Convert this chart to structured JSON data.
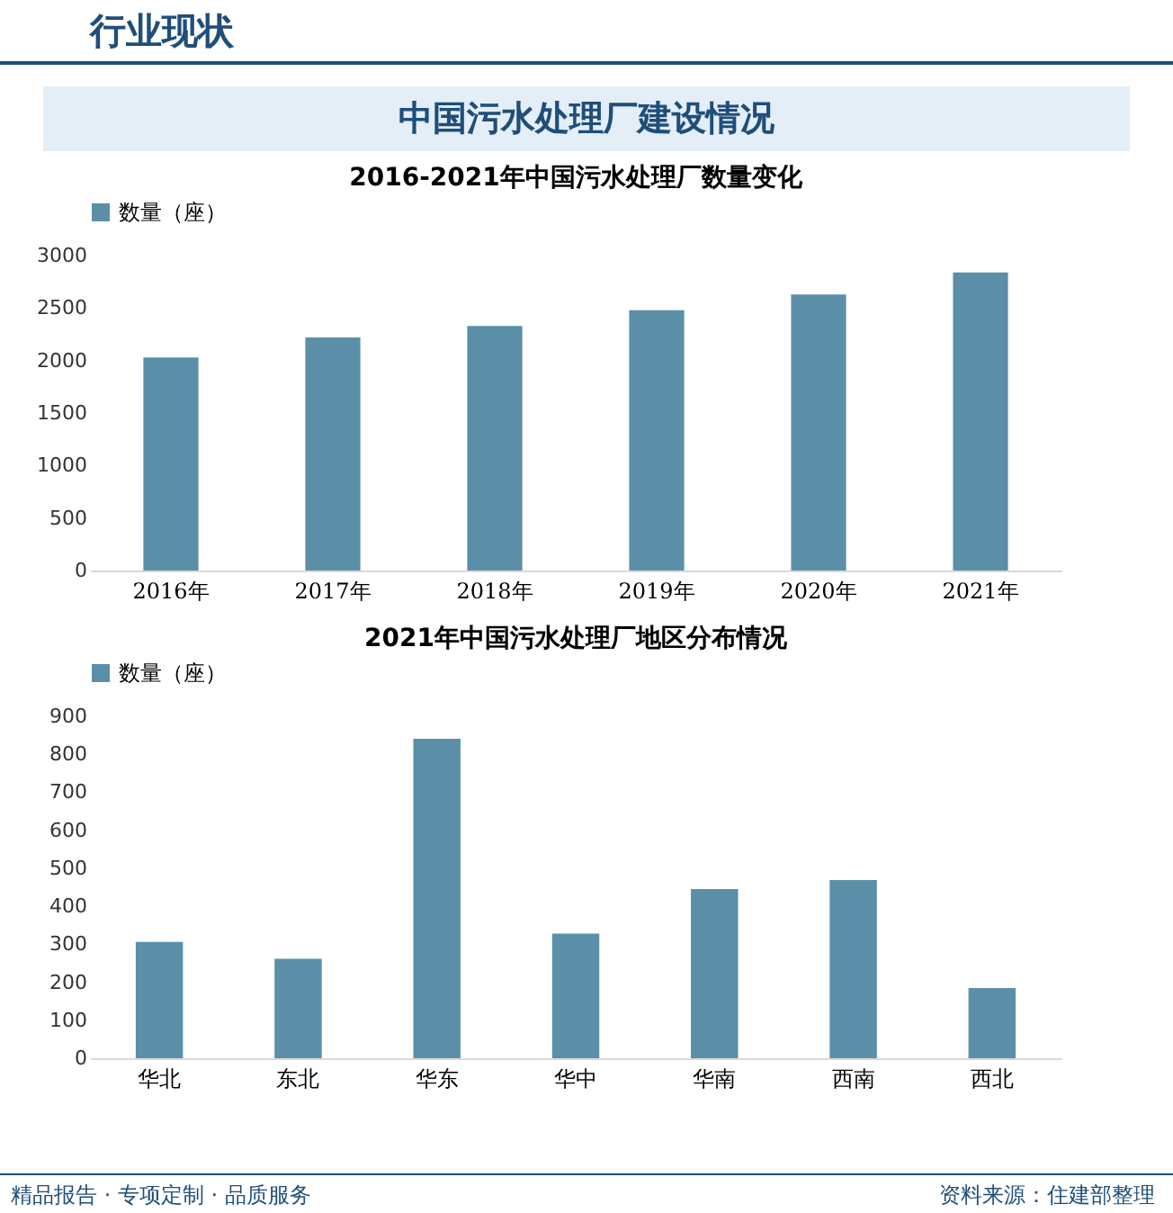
{
  "chart_data": [
    {
      "type": "bar",
      "title": "2016-2021年中国污水处理厂数量变化",
      "annotations": [
        "行业现状",
        "中国污水处理厂建设情况"
      ],
      "categories": [
        "2016年",
        "2017年",
        "2018年",
        "2019年",
        "2020年",
        "2021年"
      ],
      "series": [
        {
          "name": "数量（座）",
          "color": "#5b8fa8",
          "values": [
            2030,
            2220,
            2330,
            2480,
            2630,
            2840
          ]
        }
      ],
      "ylim": [
        0,
        3000
      ],
      "yticks": [
        0,
        500,
        1000,
        1500,
        2000,
        2500,
        3000
      ],
      "grid": false,
      "legend": "top"
    },
    {
      "type": "bar",
      "title": "2021年中国污水处理厂地区分布情况",
      "annotations": [
        "精品报告 · 专项定制 · 品质服务",
        "资料来源：住建部整理"
      ],
      "categories": [
        "华北",
        "东北",
        "华东",
        "华中",
        "华南",
        "西南",
        "西北"
      ],
      "series": [
        {
          "name": "数量（座）",
          "color": "#5b8fa8",
          "values": [
            306,
            262,
            841,
            328,
            445,
            469,
            185
          ]
        }
      ],
      "ylim": [
        0,
        900
      ],
      "yticks": [
        0,
        100,
        200,
        300,
        400,
        500,
        600,
        700,
        800,
        900
      ],
      "grid": false,
      "legend": "top"
    }
  ]
}
